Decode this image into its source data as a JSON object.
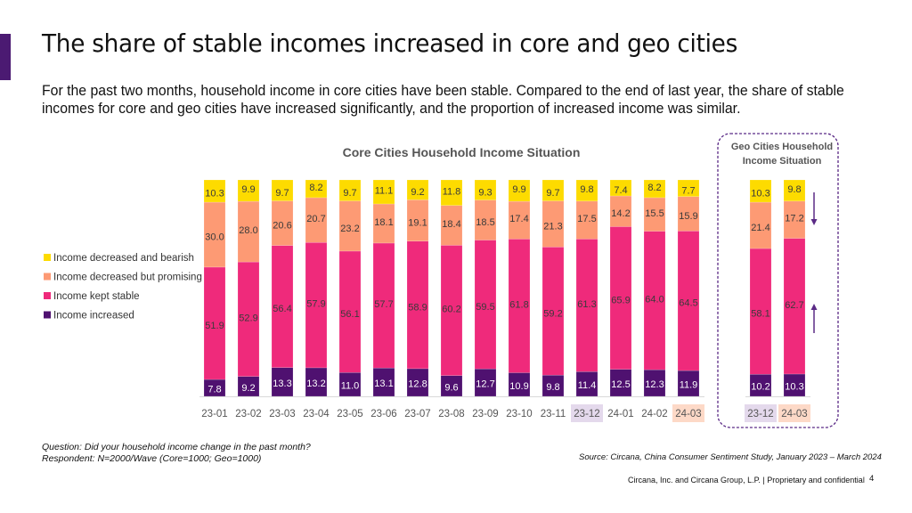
{
  "slide": {
    "title": "The share of stable incomes increased in core and geo cities",
    "subtitle": "For the past two months, household income in core cities have been stable. Compared to the end of last year, the share of stable incomes for core and geo cities have increased significantly, and the proportion of increased income was similar.",
    "footnote_question": "Question: Did your household income change in the past month?",
    "footnote_respondent": "Respondent: N=2000/Wave (Core=1000; Geo=1000)",
    "source": "Source: Circana, China Consumer Sentiment Study, January 2023 – March 2024",
    "legal": "Circana, Inc. and Circana Group, L.P. |  Proprietary and confidential",
    "page_number": "4"
  },
  "chart_data": [
    {
      "type": "bar",
      "stacked": true,
      "title": "Core Cities Household Income Situation",
      "xlabel": "",
      "ylabel": "",
      "ylim": [
        0,
        100
      ],
      "legend_position": "left",
      "categories": [
        "23-01",
        "23-02",
        "23-03",
        "23-04",
        "23-05",
        "23-06",
        "23-07",
        "23-08",
        "23-09",
        "23-10",
        "23-11",
        "23-12",
        "24-01",
        "24-02",
        "24-03"
      ],
      "highlighted_categories": {
        "23-12": "#e4d9ec",
        "24-03": "#fdd9c7"
      },
      "series": [
        {
          "name": "Income increased",
          "color": "#4f1170",
          "values": [
            7.8,
            9.2,
            13.3,
            13.2,
            11.0,
            13.1,
            12.8,
            9.6,
            12.7,
            10.9,
            9.8,
            11.4,
            12.5,
            12.3,
            11.9
          ]
        },
        {
          "name": "Income kept stable",
          "color": "#ef2a7b",
          "values": [
            51.9,
            52.9,
            56.4,
            57.9,
            56.1,
            57.7,
            58.9,
            60.2,
            59.5,
            61.8,
            59.2,
            61.3,
            65.9,
            64.0,
            64.5
          ]
        },
        {
          "name": "Income decreased but promising",
          "color": "#fd9a74",
          "values": [
            30.0,
            28.0,
            20.6,
            20.7,
            23.2,
            18.1,
            19.1,
            18.4,
            18.5,
            17.4,
            21.3,
            17.5,
            14.2,
            15.5,
            15.9
          ]
        },
        {
          "name": "Income decreased and bearish",
          "color": "#fddb00",
          "values": [
            10.3,
            9.9,
            9.7,
            8.2,
            9.7,
            11.1,
            9.2,
            11.8,
            9.3,
            9.9,
            9.7,
            9.8,
            7.4,
            8.2,
            7.7
          ]
        }
      ]
    },
    {
      "type": "bar",
      "stacked": true,
      "title": "Geo Cities Household Income Situation",
      "title_lines": [
        "Geo Cities Household",
        "Income Situation"
      ],
      "ylim": [
        0,
        100
      ],
      "categories": [
        "23-12",
        "24-03"
      ],
      "highlighted_categories": {
        "23-12": "#e4d9ec",
        "24-03": "#fdd9c7"
      },
      "series": [
        {
          "name": "Income increased",
          "color": "#4f1170",
          "values": [
            10.2,
            10.3
          ]
        },
        {
          "name": "Income kept stable",
          "color": "#ef2a7b",
          "values": [
            58.1,
            62.7
          ]
        },
        {
          "name": "Income decreased but promising",
          "color": "#fd9a74",
          "values": [
            21.4,
            17.2
          ]
        },
        {
          "name": "Income decreased and bearish",
          "color": "#fddb00",
          "values": [
            10.3,
            9.8
          ]
        }
      ],
      "annotations": [
        {
          "type": "arrow-down",
          "meaning": "decreased share",
          "series": "Income decreased but promising"
        },
        {
          "type": "arrow-up",
          "meaning": "increased share",
          "series": "Income kept stable"
        }
      ]
    }
  ],
  "legend": [
    {
      "label": "Income decreased and bearish",
      "color": "#fddb00"
    },
    {
      "label": "Income decreased but promising",
      "color": "#fd9a74"
    },
    {
      "label": "Income kept stable",
      "color": "#ef2a7b"
    },
    {
      "label": "Income increased",
      "color": "#4f1170"
    }
  ],
  "colors": {
    "accent": "#4b1a72",
    "arrow": "#5a2a86",
    "label_text": "#333333",
    "label_text_dark_bar": "#ffffff"
  }
}
